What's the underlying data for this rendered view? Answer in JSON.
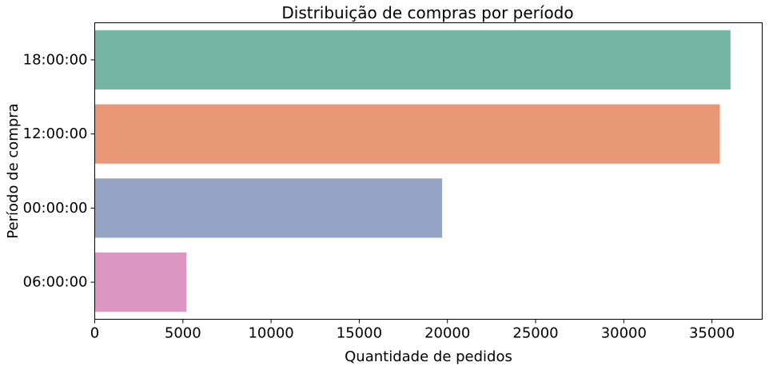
{
  "chart_data": {
    "type": "bar",
    "orientation": "horizontal",
    "title": "Distribuição de compras por período",
    "xlabel": "Quantidade de pedidos",
    "ylabel": "Período de compra",
    "categories": [
      "18:00:00",
      "12:00:00",
      "00:00:00",
      "06:00:00"
    ],
    "values": [
      36050,
      35450,
      19700,
      5200
    ],
    "colors": [
      "#74b6a1",
      "#e99876",
      "#94a3c4",
      "#db96c1"
    ],
    "xlim": [
      0,
      37850
    ],
    "xticks": [
      0,
      5000,
      10000,
      15000,
      20000,
      25000,
      30000,
      35000
    ],
    "xtick_labels": [
      "0",
      "5000",
      "10000",
      "15000",
      "20000",
      "25000",
      "30000",
      "35000"
    ],
    "grid": false,
    "legend": "none"
  }
}
